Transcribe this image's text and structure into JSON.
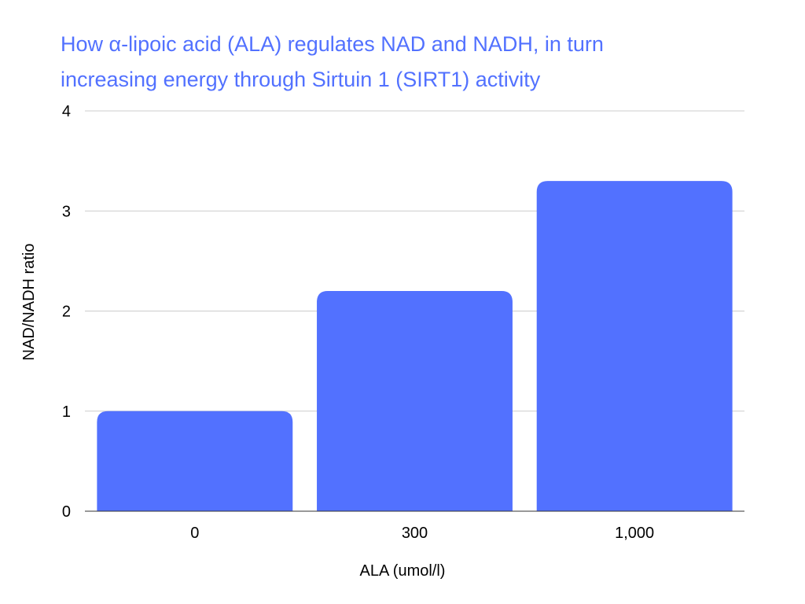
{
  "chart_data": {
    "type": "bar",
    "title_lines": [
      "How α-lipoic acid (ALA) regulates NAD and NADH, in turn",
      "increasing energy through Sirtuin 1 (SIRT1) activity"
    ],
    "xlabel": "ALA (umol/l)",
    "ylabel": "NAD/NADH ratio",
    "categories": [
      "0",
      "300",
      "1,000"
    ],
    "values": [
      1.0,
      2.2,
      3.3
    ],
    "ylim": [
      0,
      4
    ],
    "yticks": [
      "0",
      "1",
      "2",
      "3",
      "4"
    ],
    "grid": true,
    "legend": "none",
    "colors": {
      "bar": "#5271ff",
      "title": "#5271ff",
      "grid": "#cccccc",
      "axis": "#333333"
    }
  }
}
